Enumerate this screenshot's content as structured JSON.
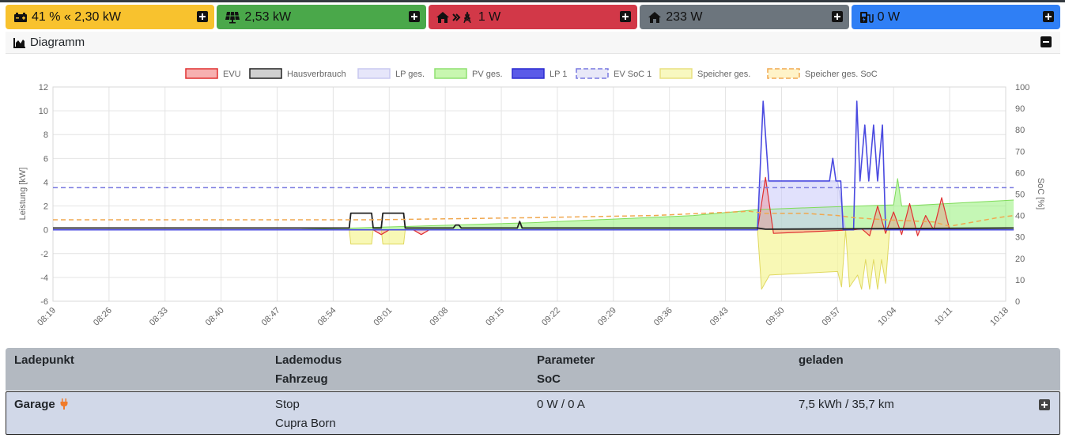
{
  "tiles": [
    {
      "icon": "battery-icon",
      "text": "41 % « 2,30 kW",
      "color": "#f8c22e"
    },
    {
      "icon": "solar-panel-icon",
      "text": "2,53 kW",
      "color": "#4aa84a"
    },
    {
      "icon": "house-grid-icon",
      "text": "1 W",
      "color": "#d23848"
    },
    {
      "icon": "house-icon",
      "text": "233 W",
      "color": "#6c757d"
    },
    {
      "icon": "charging-station-icon",
      "text": "0 W",
      "color": "#2f7ff5"
    }
  ],
  "diagram": {
    "title": "Diagramm"
  },
  "chart_data": {
    "type": "area",
    "xlabel": "",
    "ylabel": "Leistung [kW]",
    "y2label": "SoC [%]",
    "ylim": [
      -6,
      12
    ],
    "y2lim": [
      0,
      100
    ],
    "yticks": [
      "-6",
      "-4",
      "-2",
      "0",
      "2",
      "4",
      "6",
      "8",
      "10",
      "12"
    ],
    "y2ticks": [
      "0",
      "10",
      "20",
      "30",
      "40",
      "50",
      "60",
      "70",
      "80",
      "90",
      "100"
    ],
    "xticks": [
      "08:19",
      "08:26",
      "08:33",
      "08:40",
      "08:47",
      "08:54",
      "09:01",
      "09:08",
      "09:15",
      "09:22",
      "09:29",
      "09:36",
      "09:43",
      "09:50",
      "09:57",
      "10:04",
      "10:11",
      "10:18"
    ],
    "legend": [
      "EVU",
      "Hausverbrauch",
      "LP ges.",
      "PV ges.",
      "LP 1",
      "EV SoC 1",
      "Speicher ges.",
      "Speicher ges. SoC"
    ],
    "legend_position": "top",
    "grid": true,
    "series": [
      {
        "name": "EVU",
        "color": "#e03030",
        "axis": "left",
        "points": [
          [
            0,
            0.0
          ],
          [
            40,
            0.0
          ],
          [
            41,
            -0.4
          ],
          [
            42,
            0.0
          ],
          [
            45,
            0.0
          ],
          [
            46,
            -0.4
          ],
          [
            47,
            0.0
          ],
          [
            88,
            0.0
          ],
          [
            89,
            4.4
          ],
          [
            90,
            -0.3
          ],
          [
            100,
            0.0
          ],
          [
            101,
            0.1
          ],
          [
            102,
            -0.5
          ],
          [
            103,
            2.0
          ],
          [
            104,
            -0.3
          ],
          [
            105,
            1.5
          ],
          [
            106,
            -0.4
          ],
          [
            107,
            2.2
          ],
          [
            108,
            -0.5
          ],
          [
            109,
            1.2
          ],
          [
            110,
            0.0
          ],
          [
            111,
            2.7
          ],
          [
            112,
            0.0
          ],
          [
            120,
            0.0
          ]
        ]
      },
      {
        "name": "Hausverbrauch",
        "color": "#222222",
        "axis": "left",
        "points": [
          [
            0,
            0.15
          ],
          [
            37,
            0.15
          ],
          [
            37.2,
            1.4
          ],
          [
            39.8,
            1.4
          ],
          [
            40,
            0.15
          ],
          [
            41,
            0.15
          ],
          [
            41.2,
            1.4
          ],
          [
            43.8,
            1.4
          ],
          [
            44,
            0.15
          ],
          [
            50,
            0.15
          ],
          [
            50.3,
            0.4
          ],
          [
            50.7,
            0.4
          ],
          [
            51,
            0.15
          ],
          [
            58,
            0.15
          ],
          [
            58.3,
            0.7
          ],
          [
            58.6,
            0.15
          ],
          [
            88,
            0.15
          ],
          [
            89,
            0.05
          ],
          [
            120,
            0.15
          ]
        ]
      },
      {
        "name": "LP ges.",
        "color": "#d8d8fa",
        "axis": "left",
        "points": [
          [
            0,
            0.0
          ],
          [
            88,
            0.0
          ],
          [
            88.5,
            4.1
          ],
          [
            98,
            4.1
          ],
          [
            99,
            0.0
          ],
          [
            120,
            0.0
          ]
        ]
      },
      {
        "name": "PV ges.",
        "color": "#b8f5a0",
        "axis": "left",
        "points": [
          [
            0,
            0.0
          ],
          [
            30,
            0.0
          ],
          [
            60,
            0.6
          ],
          [
            80,
            1.2
          ],
          [
            88,
            1.7
          ],
          [
            96,
            1.9
          ],
          [
            105,
            2.1
          ],
          [
            105.5,
            4.3
          ],
          [
            106,
            2.0
          ],
          [
            120,
            2.5
          ]
        ]
      },
      {
        "name": "LP 1",
        "color": "#4a4ae0",
        "axis": "left",
        "points": [
          [
            0,
            0.0
          ],
          [
            88,
            0.0
          ],
          [
            88.7,
            10.8
          ],
          [
            89.4,
            4.1
          ],
          [
            97,
            4.1
          ],
          [
            97.4,
            6.0
          ],
          [
            97.8,
            4.1
          ],
          [
            98.4,
            4.1
          ],
          [
            98.7,
            0.0
          ],
          [
            100,
            0.0
          ],
          [
            100.4,
            10.8
          ],
          [
            100.8,
            4.1
          ],
          [
            101.4,
            8.8
          ],
          [
            101.9,
            4.1
          ],
          [
            102.5,
            8.8
          ],
          [
            103,
            4.1
          ],
          [
            103.6,
            8.8
          ],
          [
            104,
            0.0
          ],
          [
            120,
            0.0
          ]
        ]
      },
      {
        "name": "EV SoC 1",
        "color": "#7878e0",
        "axis": "right",
        "points": [
          [
            0,
            53
          ],
          [
            120,
            53
          ]
        ]
      },
      {
        "name": "Speicher ges.",
        "color": "#f4f4a8",
        "axis": "left",
        "points": [
          [
            0,
            0.0
          ],
          [
            37,
            0.0
          ],
          [
            37.2,
            -1.2
          ],
          [
            39.8,
            -1.2
          ],
          [
            40,
            0.0
          ],
          [
            41,
            0.0
          ],
          [
            41.2,
            -1.2
          ],
          [
            43.8,
            -1.2
          ],
          [
            44,
            0.0
          ],
          [
            88,
            0.0
          ],
          [
            88.5,
            -5.0
          ],
          [
            89.5,
            -3.8
          ],
          [
            98,
            -3.5
          ],
          [
            98.5,
            -4.8
          ],
          [
            99,
            0.0
          ],
          [
            99.5,
            -4.8
          ],
          [
            100.5,
            -3.8
          ],
          [
            101,
            -5.0
          ],
          [
            101.5,
            -2.5
          ],
          [
            102,
            -5.0
          ],
          [
            102.5,
            -2.5
          ],
          [
            103,
            -5.0
          ],
          [
            103.5,
            -2.5
          ],
          [
            104,
            -4.5
          ],
          [
            104.5,
            0.0
          ],
          [
            120,
            0.0
          ]
        ]
      },
      {
        "name": "Speicher ges. SoC",
        "color": "#f0a850",
        "axis": "right",
        "points": [
          [
            0,
            38
          ],
          [
            40,
            38
          ],
          [
            60,
            39
          ],
          [
            75,
            40
          ],
          [
            87,
            42
          ],
          [
            89,
            41
          ],
          [
            94,
            41
          ],
          [
            98,
            40
          ],
          [
            100,
            39
          ],
          [
            104,
            38
          ],
          [
            110,
            37
          ],
          [
            112,
            35
          ],
          [
            118,
            39
          ],
          [
            120,
            40
          ]
        ]
      }
    ]
  },
  "table": {
    "headers": {
      "ladepunkt": "Ladepunkt",
      "lademodus": "Lademodus",
      "fahrzeug": "Fahrzeug",
      "parameter": "Parameter",
      "soc": "SoC",
      "geladen": "geladen"
    },
    "row": {
      "ladepunkt": "Garage",
      "lademodus": "Stop",
      "fahrzeug": "Cupra Born",
      "parameter": "0 W / 0 A",
      "geladen": "7,5 kWh / 35,7 km"
    }
  }
}
